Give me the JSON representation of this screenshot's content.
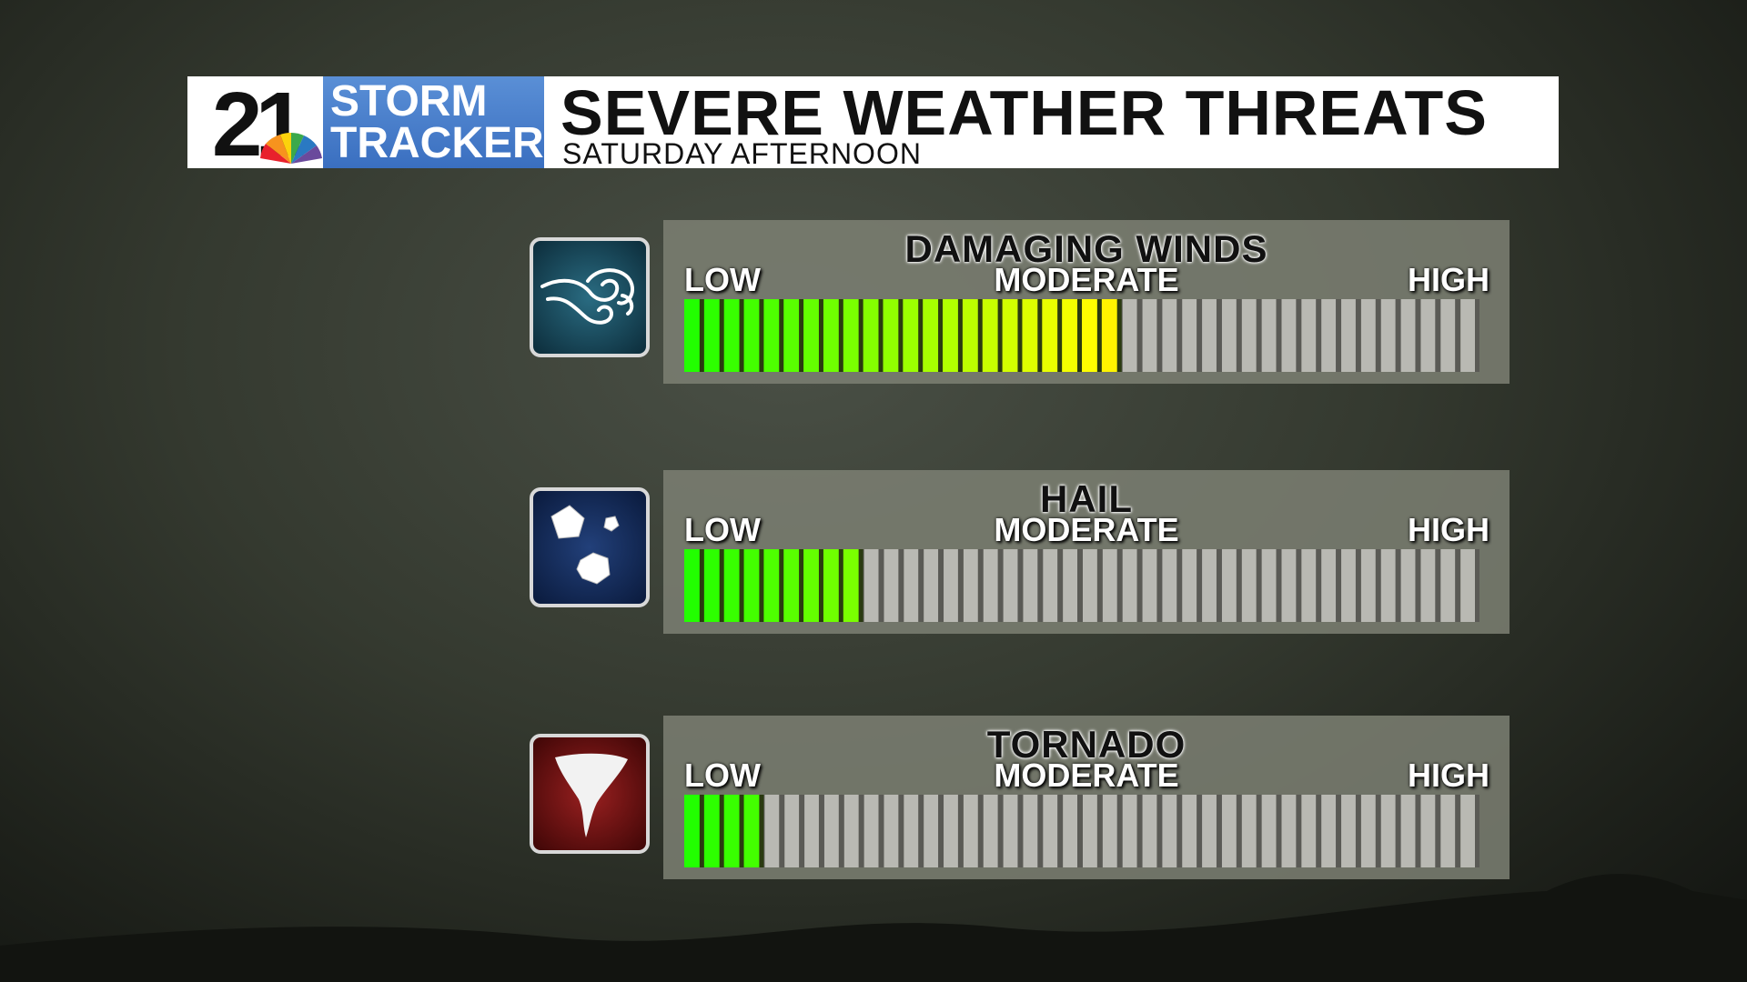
{
  "header": {
    "logo": {
      "number": "21",
      "line1": "STORM",
      "line2": "TRACKER"
    },
    "title": "SEVERE WEATHER THREATS",
    "subtitle": "SATURDAY AFTERNOON"
  },
  "meter": {
    "segments": 40,
    "scale": [
      "LOW",
      "MODERATE",
      "HIGH"
    ]
  },
  "threats": [
    {
      "label": "DAMAGING WINDS",
      "level": 22
    },
    {
      "label": "HAIL",
      "level": 9
    },
    {
      "label": "TORNADO",
      "level": 4
    }
  ]
}
